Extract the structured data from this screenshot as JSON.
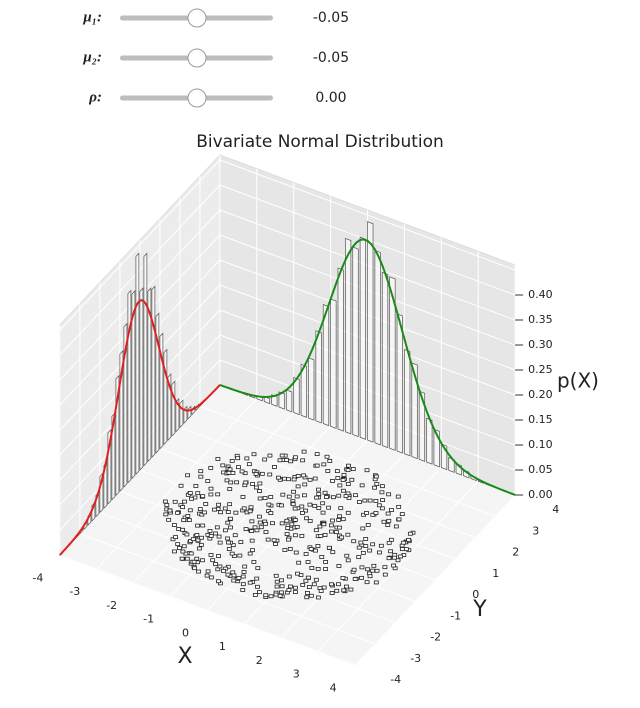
{
  "controls": [
    {
      "label": "μ₁:",
      "value": "-0.05"
    },
    {
      "label": "μ₂:",
      "value": "-0.05"
    },
    {
      "label": "ρ:",
      "value": "0.00"
    }
  ],
  "plot": {
    "title": "Bivariate Normal Distribution",
    "x_label": "X",
    "y_label": "Y",
    "z_label": "p(X)",
    "x_ticks": [
      "-4",
      "-3",
      "-2",
      "-1",
      "0",
      "1",
      "2",
      "3",
      "4"
    ],
    "y_ticks": [
      "-4",
      "-3",
      "-2",
      "-1",
      "0",
      "1",
      "2",
      "3",
      "4"
    ],
    "z_ticks": [
      "0.00",
      "0.05",
      "0.10",
      "0.15",
      "0.20",
      "0.25",
      "0.30",
      "0.35",
      "0.40"
    ]
  }
}
